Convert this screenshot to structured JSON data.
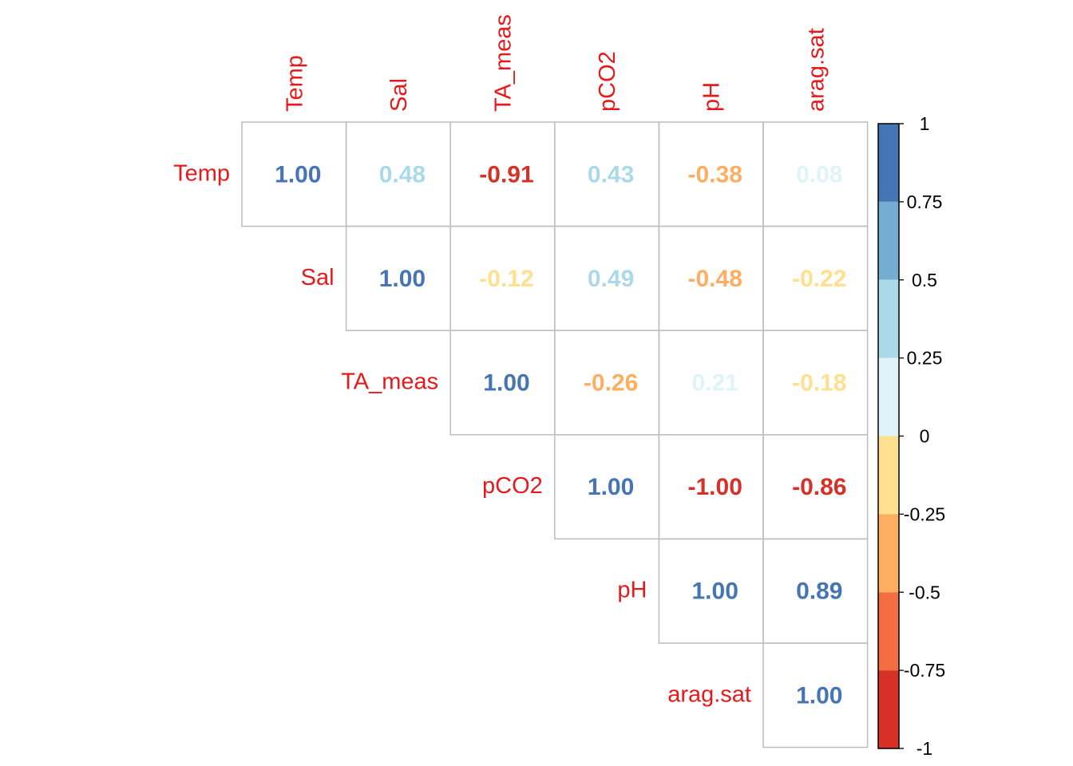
{
  "chart_data": {
    "type": "heatmap",
    "variables": [
      "Temp",
      "Sal",
      "TA_meas",
      "pCO2",
      "pH",
      "arag.sat"
    ],
    "matrix": [
      [
        1.0,
        0.48,
        -0.91,
        0.43,
        -0.38,
        0.08
      ],
      [
        null,
        1.0,
        -0.12,
        0.49,
        -0.48,
        -0.22
      ],
      [
        null,
        null,
        1.0,
        -0.26,
        0.21,
        -0.18
      ],
      [
        null,
        null,
        null,
        1.0,
        -1.0,
        -0.86
      ],
      [
        null,
        null,
        null,
        null,
        1.0,
        0.89
      ],
      [
        null,
        null,
        null,
        null,
        null,
        1.0
      ]
    ],
    "display": {
      "Temp": [
        "1.00",
        "0.48",
        "-0.91",
        "0.43",
        "-0.38",
        "0.08"
      ],
      "Sal": [
        "",
        "1.00",
        "-0.12",
        "0.49",
        "-0.48",
        "-0.22"
      ],
      "TA_meas": [
        "",
        "",
        "1.00",
        "-0.26",
        "0.21",
        "-0.18"
      ],
      "pCO2": [
        "",
        "",
        "",
        "1.00",
        "-1.00",
        "-0.86"
      ],
      "pH": [
        "",
        "",
        "",
        "",
        "1.00",
        "0.89"
      ],
      "arag.sat": [
        "",
        "",
        "",
        "",
        "",
        "1.00"
      ]
    },
    "shape": "upper-triangle",
    "label_color": "#e41a1c",
    "grid_color": "#c0c0c0",
    "colorbar": {
      "ticks": [
        "1",
        "0.75",
        "0.5",
        "0.25",
        "0",
        "-0.25",
        "-0.5",
        "-0.75",
        "-1"
      ],
      "range": [
        -1,
        1
      ],
      "bins": [
        {
          "from": 0.75,
          "to": 1.0,
          "color": "#4575b4"
        },
        {
          "from": 0.5,
          "to": 0.75,
          "color": "#74add1"
        },
        {
          "from": 0.25,
          "to": 0.5,
          "color": "#abd9e9"
        },
        {
          "from": 0.0,
          "to": 0.25,
          "color": "#e0f3f8"
        },
        {
          "from": -0.25,
          "to": 0.0,
          "color": "#fee090"
        },
        {
          "from": -0.5,
          "to": -0.25,
          "color": "#fdae61"
        },
        {
          "from": -0.75,
          "to": -0.5,
          "color": "#f46d43"
        },
        {
          "from": -1.0,
          "to": -0.75,
          "color": "#d73027"
        }
      ]
    }
  }
}
